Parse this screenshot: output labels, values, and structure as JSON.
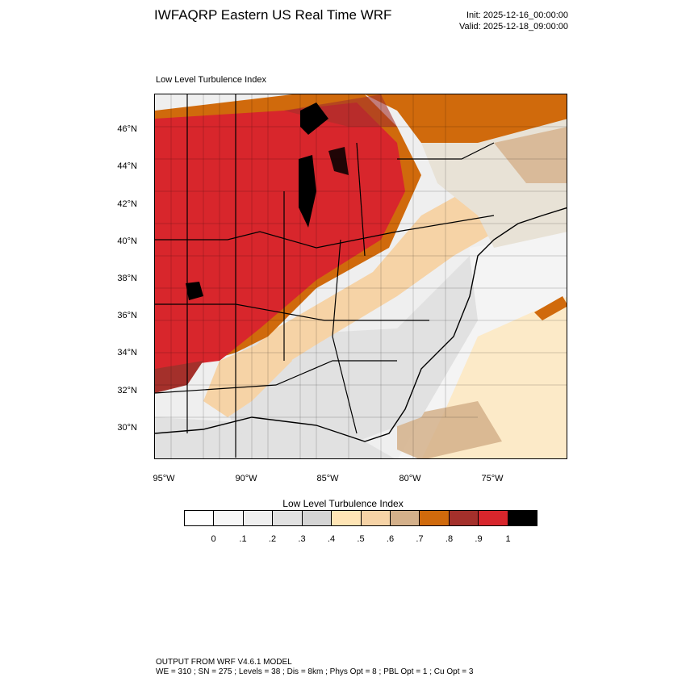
{
  "title": "IWFAQRP Eastern US Real Time WRF",
  "init": "Init: 2025-12-16_00:00:00",
  "valid": "Valid: 2025-12-18_09:00:00",
  "plot_label": "Low Level Turbulence Index",
  "lat_labels": [
    "46°N",
    "44°N",
    "42°N",
    "40°N",
    "38°N",
    "36°N",
    "34°N",
    "32°N",
    "30°N"
  ],
  "lon_labels": [
    "95°W",
    "90°W",
    "85°W",
    "80°W",
    "75°W"
  ],
  "colorbar": {
    "title": "Low Level Turbulence Index",
    "colors": [
      "#ffffff",
      "#f7f7f7",
      "#efefef",
      "#e1e1e1",
      "#d4d4d4",
      "#ffe5b5",
      "#f6d3a6",
      "#d4b08a",
      "#d06a0c",
      "#a4302b",
      "#d8262c",
      "#000000"
    ],
    "ticks": [
      "0",
      ".1",
      ".2",
      ".3",
      ".4",
      ".5",
      ".6",
      ".7",
      ".8",
      ".9",
      "1"
    ]
  },
  "footer": {
    "line1": "OUTPUT FROM WRF V4.6.1 MODEL",
    "line2": "WE = 310 ; SN = 275 ; Levels = 38 ; Dis = 8km ; Phys Opt = 8 ; PBL Opt = 1 ; Cu Opt = 3"
  }
}
